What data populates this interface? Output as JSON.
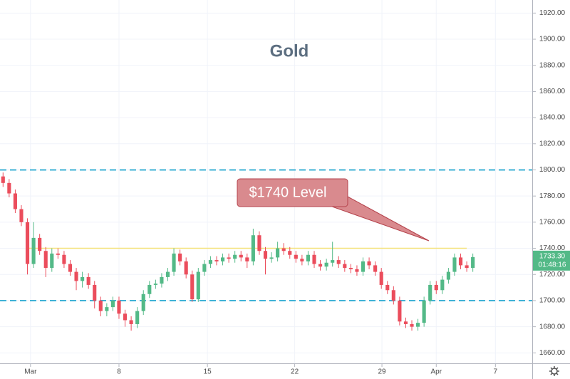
{
  "chart_data": {
    "type": "candlestick",
    "title": "Gold",
    "x": [
      0.5,
      1.5,
      2.5,
      3.5,
      4.5,
      5.5,
      6.5,
      7.5,
      8.5,
      9.5,
      10.5,
      11.5,
      12.5,
      13.5,
      14.5,
      15.5,
      16.5,
      17.5,
      18.5,
      19.5,
      20.5,
      21.5,
      22.5,
      23.5,
      24.5,
      25.5,
      26.5,
      27.5,
      28.5,
      29.5,
      30.5,
      31.5,
      32.5,
      33.5,
      34.5,
      35.5,
      36.5,
      37.5,
      38.5,
      39.5,
      40.5,
      41.5,
      42.5,
      43.5,
      44.5,
      45.5,
      46.5,
      47.5,
      48.5,
      49.5,
      50.5,
      51.5,
      52.5,
      53.5,
      54.5,
      55.5,
      56.5,
      57.5,
      58.5,
      59.5,
      60.5,
      61.5,
      62.5,
      63.5,
      64.5,
      65.5,
      66.5,
      67.5,
      68.5,
      69.5,
      70.5,
      71.5,
      72.5,
      73.5,
      74.5,
      75.5,
      76.5,
      77.5
    ],
    "open": [
      1795,
      1790,
      1782,
      1770,
      1760,
      1728,
      1748,
      1738,
      1725,
      1736,
      1735,
      1728,
      1722,
      1715,
      1718,
      1712,
      1700,
      1692,
      1695,
      1700,
      1690,
      1685,
      1682,
      1692,
      1705,
      1712,
      1713,
      1718,
      1722,
      1736,
      1730,
      1720,
      1701,
      1722,
      1728,
      1731,
      1730,
      1733,
      1732,
      1735,
      1733,
      1730,
      1750,
      1738,
      1732,
      1733,
      1740,
      1738,
      1735,
      1732,
      1730,
      1735,
      1728,
      1726,
      1729,
      1731,
      1728,
      1725,
      1724,
      1722,
      1730,
      1727,
      1722,
      1712,
      1708,
      1700,
      1684,
      1682,
      1680,
      1683,
      1700,
      1712,
      1708,
      1716,
      1722,
      1733,
      1727,
      1725
    ],
    "high": [
      1798,
      1793,
      1785,
      1773,
      1763,
      1760,
      1751,
      1741,
      1740,
      1740,
      1738,
      1731,
      1725,
      1722,
      1721,
      1715,
      1703,
      1698,
      1703,
      1703,
      1693,
      1688,
      1695,
      1708,
      1715,
      1716,
      1721,
      1725,
      1740,
      1739,
      1733,
      1723,
      1725,
      1731,
      1734,
      1734,
      1736,
      1736,
      1738,
      1738,
      1736,
      1755,
      1753,
      1741,
      1737,
      1745,
      1744,
      1741,
      1738,
      1735,
      1738,
      1738,
      1731,
      1732,
      1745,
      1734,
      1731,
      1728,
      1727,
      1733,
      1733,
      1730,
      1725,
      1715,
      1711,
      1703,
      1687,
      1685,
      1686,
      1703,
      1715,
      1715,
      1719,
      1725,
      1736,
      1736,
      1730,
      1736
    ],
    "low": [
      1787,
      1779,
      1767,
      1757,
      1720,
      1725,
      1735,
      1718,
      1722,
      1732,
      1725,
      1719,
      1708,
      1710,
      1709,
      1694,
      1688,
      1688,
      1692,
      1686,
      1680,
      1677,
      1679,
      1689,
      1702,
      1709,
      1710,
      1715,
      1719,
      1727,
      1717,
      1699,
      1699,
      1719,
      1725,
      1727,
      1727,
      1729,
      1729,
      1730,
      1725,
      1727,
      1735,
      1720,
      1729,
      1730,
      1735,
      1732,
      1729,
      1727,
      1727,
      1725,
      1723,
      1723,
      1726,
      1725,
      1722,
      1721,
      1719,
      1719,
      1724,
      1719,
      1709,
      1705,
      1697,
      1681,
      1679,
      1677,
      1677,
      1680,
      1697,
      1705,
      1705,
      1713,
      1719,
      1724,
      1722,
      1722
    ],
    "close": [
      1790,
      1782,
      1770,
      1760,
      1728,
      1748,
      1738,
      1725,
      1736,
      1735,
      1728,
      1722,
      1715,
      1718,
      1712,
      1700,
      1692,
      1695,
      1700,
      1690,
      1685,
      1682,
      1692,
      1705,
      1712,
      1713,
      1718,
      1722,
      1736,
      1730,
      1720,
      1701,
      1722,
      1728,
      1731,
      1730,
      1733,
      1732,
      1735,
      1733,
      1730,
      1750,
      1738,
      1732,
      1733,
      1740,
      1738,
      1735,
      1732,
      1730,
      1735,
      1728,
      1726,
      1729,
      1731,
      1728,
      1725,
      1724,
      1722,
      1730,
      1727,
      1722,
      1712,
      1708,
      1700,
      1684,
      1682,
      1680,
      1683,
      1700,
      1712,
      1708,
      1716,
      1722,
      1733,
      1727,
      1725,
      1733.3
    ],
    "up_color": "#53b987",
    "down_color": "#eb4d5c",
    "xlim": [
      0,
      87
    ],
    "xticks": [
      {
        "value": 5,
        "label": "Mar"
      },
      {
        "value": 19.5,
        "label": "8"
      },
      {
        "value": 34,
        "label": "15"
      },
      {
        "value": 48.3,
        "label": "22"
      },
      {
        "value": 62.6,
        "label": "29"
      },
      {
        "value": 71.5,
        "label": "Apr"
      },
      {
        "value": 81.2,
        "label": "7"
      }
    ],
    "ylim": [
      1652,
      1930
    ],
    "yticks": [
      {
        "value": 1660,
        "label": "1660.00"
      },
      {
        "value": 1680,
        "label": "1680.00"
      },
      {
        "value": 1700,
        "label": "1700.00"
      },
      {
        "value": 1720,
        "label": "1720.00"
      },
      {
        "value": 1740,
        "label": "1740.00"
      },
      {
        "value": 1760,
        "label": "1760.00"
      },
      {
        "value": 1780,
        "label": "1780.00"
      },
      {
        "value": 1800,
        "label": "1800.00"
      },
      {
        "value": 1820,
        "label": "1820.00"
      },
      {
        "value": 1840,
        "label": "1840.00"
      },
      {
        "value": 1860,
        "label": "1860.00"
      },
      {
        "value": 1880,
        "label": "1880.00"
      },
      {
        "value": 1900,
        "label": "1900.00"
      },
      {
        "value": 1920,
        "label": "1920.00"
      }
    ],
    "grid": true,
    "levels": [
      {
        "value": 1800,
        "color": "#3fb2d6",
        "style": "dashed"
      },
      {
        "value": 1700,
        "color": "#3fb2d6",
        "style": "dashed"
      },
      {
        "value": 1740,
        "color": "#f5e27a",
        "style": "solid"
      }
    ],
    "annotation": "$1740 Level",
    "last_price": {
      "value": 1733.3,
      "label": "1733.30"
    },
    "countdown": "01:48:16"
  }
}
